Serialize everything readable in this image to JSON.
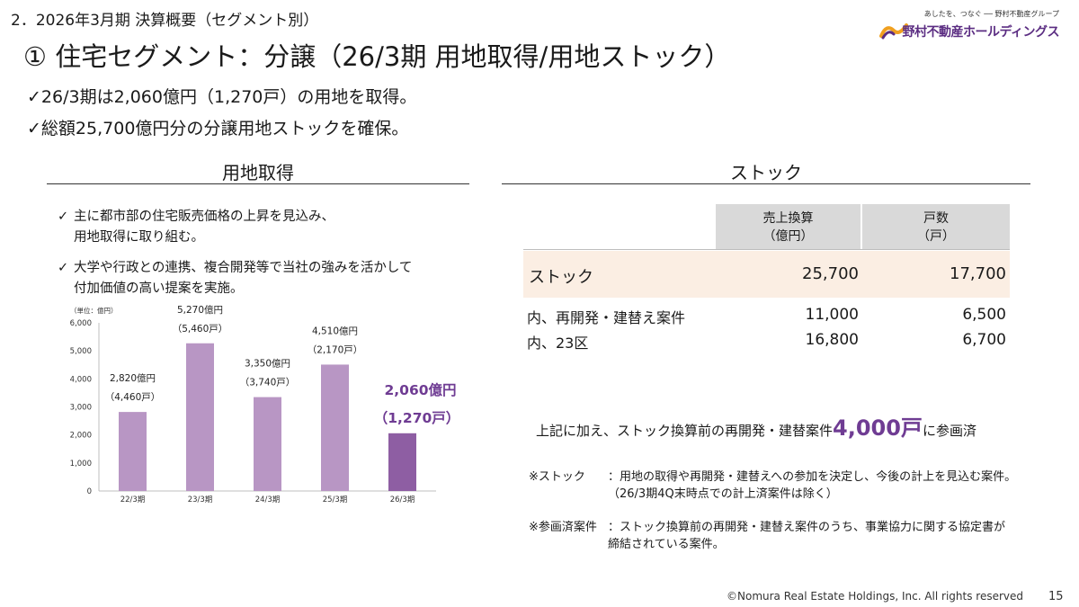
{
  "header": {
    "section_title": "2．2026年3月期 決算概要（セグメント別）",
    "logo_tagline": "あしたを、つなぐ ── 野村不動産グループ",
    "logo_name": "野村不動産ホールディングス",
    "logo_mark": "nomura-logo-icon"
  },
  "title": "① 住宅セグメント：分譲（26/3期 用地取得/用地ストック）",
  "summary_bullets": [
    "✓26/3期は2,060億円（1,270戸）の用地を取得。",
    "✓総額25,700億円分の分譲用地ストックを確保。"
  ],
  "left_panel": {
    "heading": "用地取得",
    "bullets": [
      {
        "check": "✓",
        "text": "主に都市部の住宅販売価格の上昇を見込み、\n用地取得に取り組む。"
      },
      {
        "check": "✓",
        "text": "大学や行政との連携、複合開発等で当社の強みを活かして\n付加価値の高い提案を実施。"
      }
    ]
  },
  "chart_data": {
    "type": "bar",
    "unit_label": "（単位：億円）",
    "categories": [
      "22/3期",
      "23/3期",
      "24/3期",
      "25/3期",
      "26/3期"
    ],
    "values": [
      2820,
      5270,
      3350,
      4510,
      2060
    ],
    "ylim": [
      0,
      6000
    ],
    "yticks": [
      "0",
      "1,000",
      "2,000",
      "3,000",
      "4,000",
      "5,000",
      "6,000"
    ],
    "bar_labels": [
      {
        "amount": "2,820億円",
        "units": "（4,460戸）"
      },
      {
        "amount": "5,270億円",
        "units": "（5,460戸）"
      },
      {
        "amount": "3,350億円",
        "units": "（3,740戸）"
      },
      {
        "amount": "4,510億円",
        "units": "（2,170戸）"
      },
      {
        "amount": "2,060億円",
        "units": "（1,270戸）"
      }
    ],
    "colors": {
      "bar": "#b896c4",
      "bar_highlight": "#8e5ea3",
      "highlight_text": "#6f3c93"
    },
    "grid": false
  },
  "right_panel": {
    "heading": "ストック",
    "table": {
      "headers": [
        "売上換算\n（億円）",
        "戸数\n（戸）"
      ],
      "rows": [
        {
          "label": "ストック",
          "sales": "25,700",
          "units": "17,700"
        },
        {
          "label": "内、再開発・建替え案件",
          "sales": "11,000",
          "units": "6,500"
        },
        {
          "label": "内、23区",
          "sales": "16,800",
          "units": "6,700"
        }
      ]
    },
    "extra_pre": "上記に加え、ストック換算前の再開発・建替案件",
    "extra_value": "4,000戸",
    "extra_post": "に参画済",
    "notes": [
      {
        "term": "※ストック",
        "desc": "：用地の取得や再開発・建替えへの参加を決定し、今後の計上を見込む案件。\n （26/3期4Q末時点での計上済案件は除く）"
      },
      {
        "term": "※参画済案件",
        "desc": "：ストック換算前の再開発・建替え案件のうち、事業協力に関する協定書が\n 締結されている案件。"
      }
    ]
  },
  "footer": {
    "copyright": "©Nomura Real Estate Holdings, Inc. All rights reserved",
    "page_number": "15"
  }
}
